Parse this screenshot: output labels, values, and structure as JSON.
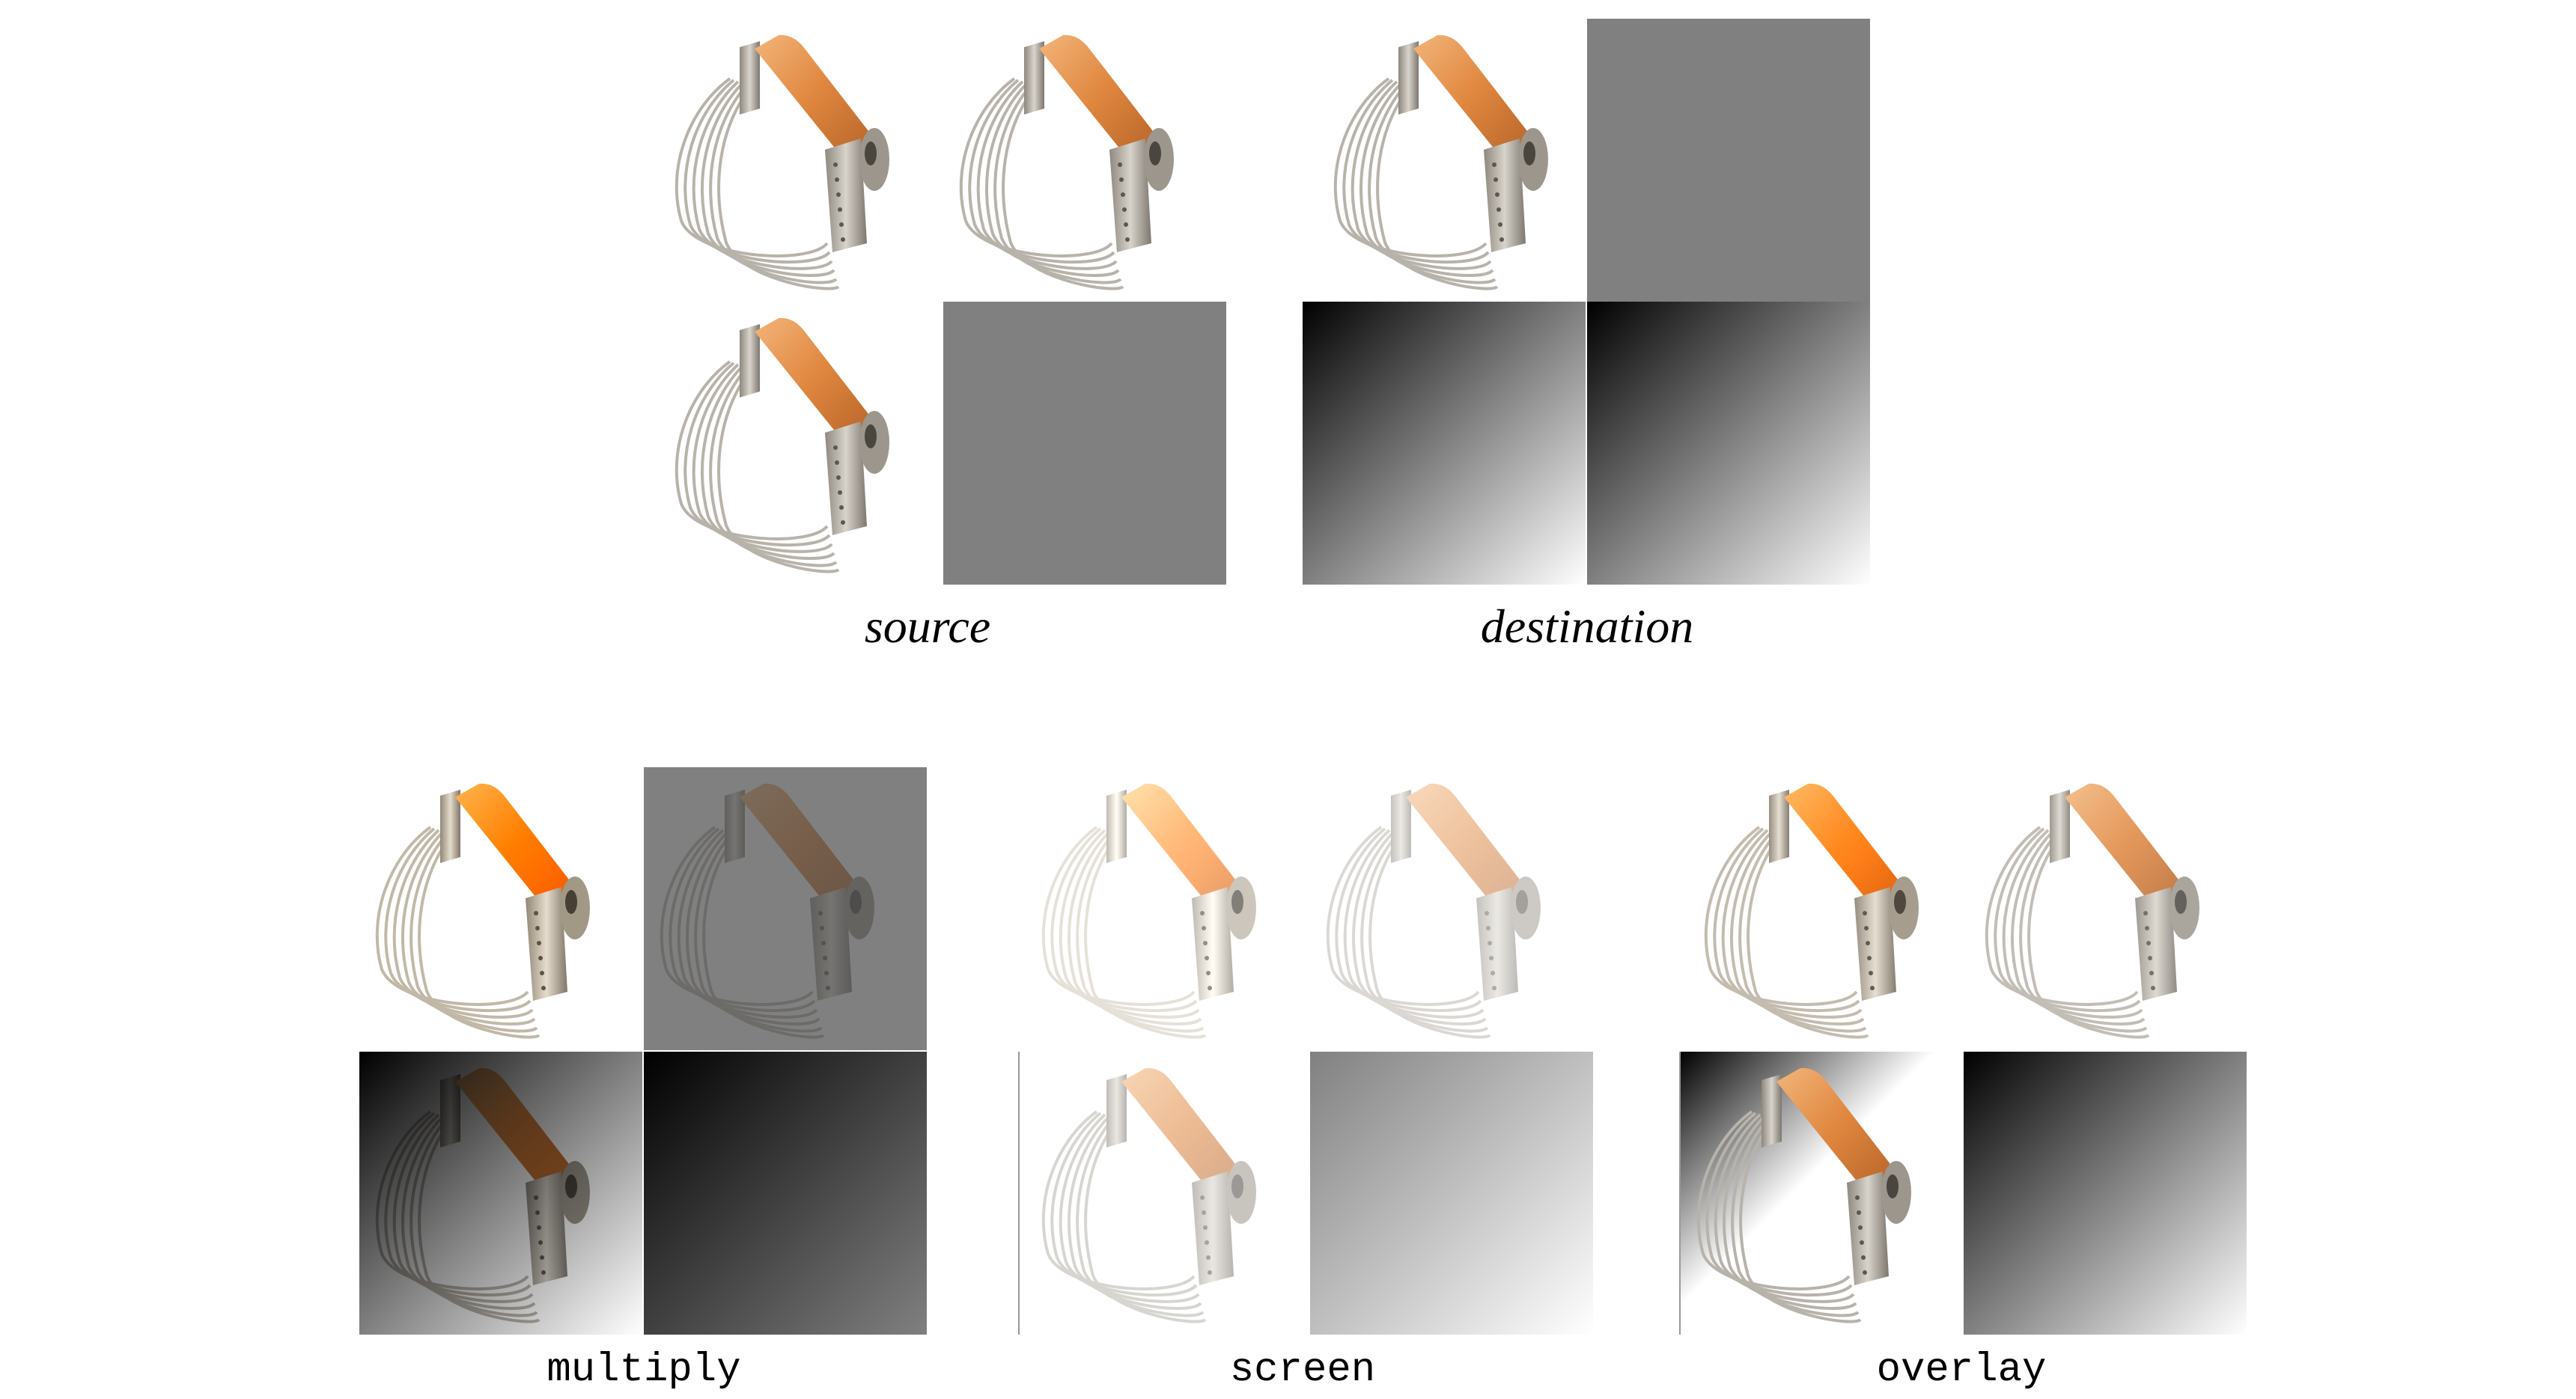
{
  "labels": {
    "source": "source",
    "destination": "destination",
    "multiply": "multiply",
    "screen": "screen",
    "overlay": "overlay"
  },
  "colors": {
    "background": "#ffffff",
    "gray_square": "#808080",
    "gradient_start": "#000000",
    "gradient_end": "#ffffff",
    "handle_wood": "#e2904a",
    "metal": "#c9c4bc"
  },
  "icons": {
    "pastry_cutter": "pastry-blender-icon"
  }
}
